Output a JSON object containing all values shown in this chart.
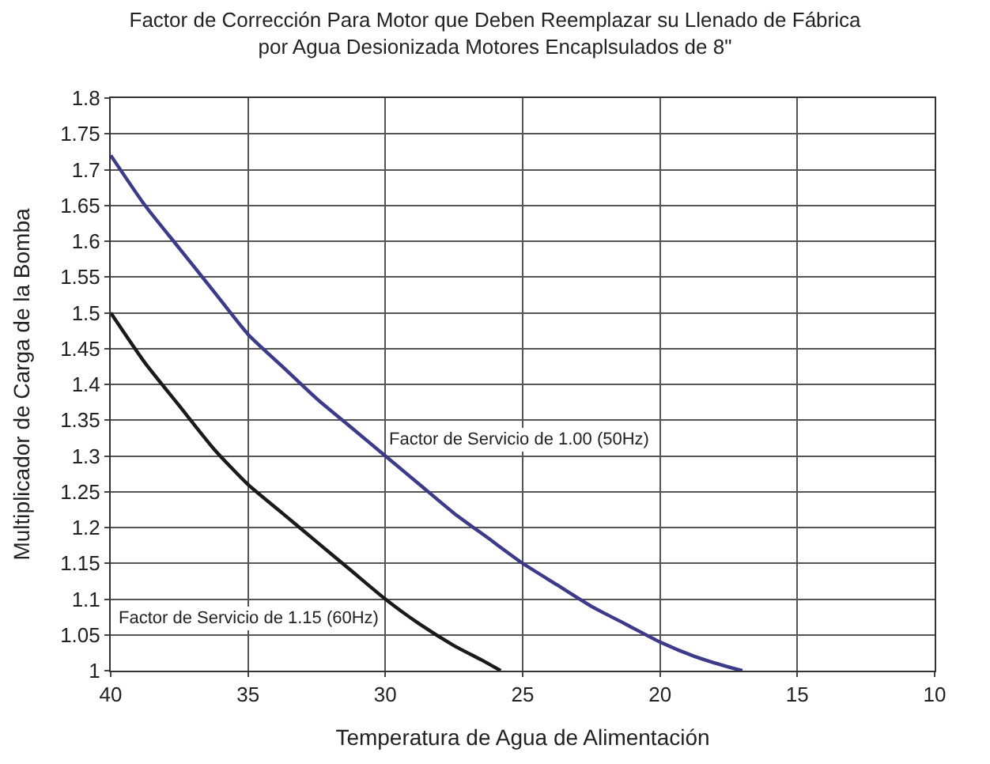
{
  "chart_data": {
    "type": "line",
    "title": "Factor de Corrección Para Motor que Deben Reemplazar su Llenado de Fábrica\npor Agua Desionizada Motores Encaplsulados de 8\"",
    "xlabel": "Temperatura de Agua de Alimentación",
    "ylabel": "Multiplicador de Carga de la Bomba",
    "series": [
      {
        "name": "Factor de Servicio de 1.00 (50Hz)",
        "color": "#3b3b8a",
        "x": [
          40,
          38.75,
          37.5,
          36.25,
          35,
          33.75,
          32.5,
          31.25,
          30,
          28.75,
          27.5,
          26.25,
          25,
          23.75,
          22.5,
          21.25,
          20,
          18.75,
          17.5,
          17
        ],
        "values": [
          1.72,
          1.65,
          1.59,
          1.53,
          1.47,
          1.425,
          1.38,
          1.34,
          1.3,
          1.26,
          1.22,
          1.185,
          1.15,
          1.12,
          1.09,
          1.065,
          1.04,
          1.02,
          1.005,
          1.0
        ]
      },
      {
        "name": "Factor de Servicio de 1.15 (60Hz)",
        "color": "#1a1a1a",
        "x": [
          40,
          38.75,
          37.5,
          36.25,
          35,
          33.75,
          32.5,
          31.25,
          30,
          28.75,
          27.5,
          26.5,
          25.8
        ],
        "values": [
          1.5,
          1.43,
          1.37,
          1.31,
          1.26,
          1.22,
          1.18,
          1.14,
          1.1,
          1.065,
          1.035,
          1.015,
          1.0
        ]
      }
    ],
    "xlim": [
      40,
      10
    ],
    "xticks": [
      40,
      35,
      30,
      25,
      20,
      15,
      10
    ],
    "ylim": [
      1,
      1.8
    ],
    "yticks": [
      1,
      1.05,
      1.1,
      1.15,
      1.2,
      1.25,
      1.3,
      1.35,
      1.4,
      1.45,
      1.5,
      1.55,
      1.6,
      1.65,
      1.7,
      1.75,
      1.8
    ],
    "grid": true,
    "legend": false,
    "marker": "none",
    "line_style": "solid"
  }
}
